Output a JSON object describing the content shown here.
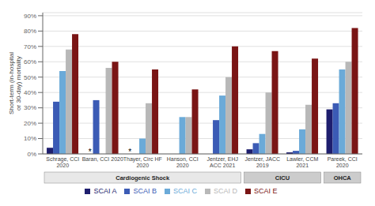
{
  "chart_data": {
    "type": "bar",
    "categories": [
      "Schrage, CCI\n2020",
      "Baran, CCI 2020",
      "Thayer, Circ HF\n2020",
      "Hanson, CCI\n2020",
      "Jentzer, EHJ\nACC 2021",
      "Jentzer, JACC\n2019",
      "Lawler, CCM\n2021",
      "Pareek, CCI\n2020"
    ],
    "series": [
      {
        "name": "SCAI A",
        "color": "#1e1e6e",
        "values": [
          4,
          null,
          null,
          null,
          null,
          3,
          1,
          29
        ]
      },
      {
        "name": "SCAI B",
        "color": "#3b5bb5",
        "values": [
          34,
          35,
          null,
          null,
          22,
          7,
          2,
          33
        ]
      },
      {
        "name": "SCAI C",
        "color": "#6baad8",
        "values": [
          54,
          null,
          10,
          24,
          38,
          13,
          16,
          55
        ]
      },
      {
        "name": "SCAI D",
        "color": "#b8b8b8",
        "values": [
          68,
          56,
          33,
          24,
          50,
          40,
          32,
          60
        ]
      },
      {
        "name": "SCAI E",
        "color": "#7a1515",
        "values": [
          78,
          60,
          55,
          42,
          70,
          67,
          62,
          82
        ]
      }
    ],
    "ylabel": "Short-term (in-hospital or 30-day) mortality",
    "ylim": [
      0,
      92
    ],
    "yticks": [
      {
        "value": 0,
        "label": "0%"
      },
      {
        "value": 10,
        "label": "10%"
      },
      {
        "value": 20,
        "label": "20%"
      },
      {
        "value": 30,
        "label": "30%"
      },
      {
        "value": 40,
        "label": "40%"
      },
      {
        "value": 50,
        "label": "50%"
      },
      {
        "value": 60,
        "label": "60%"
      },
      {
        "value": 70,
        "label": "70%"
      },
      {
        "value": 80,
        "label": "80%"
      },
      {
        "value": 90,
        "label": "90%"
      }
    ],
    "grid": true,
    "legend": "bottom",
    "annotations": [
      {
        "text": "*",
        "category": "Baran, CCI 2020",
        "series": "SCAI A"
      },
      {
        "text": "*",
        "category": "Thayer, Circ HF\n2020",
        "series": "SCAI A"
      },
      {
        "text": "Cardiogenic Shock",
        "categories": [
          "Schrage, CCI\n2020",
          "Baran, CCI 2020",
          "Thayer, Circ HF\n2020",
          "Hanson, CCI\n2020",
          "Jentzer, EHJ\nACC 2021"
        ],
        "color": "#e8e8e8"
      },
      {
        "text": "CICU",
        "categories": [
          "Jentzer, JACC\n2019",
          "Lawler, CCM\n2021"
        ],
        "color": "#cccccc"
      },
      {
        "text": "OHCA",
        "categories": [
          "Pareek, CCI\n2020"
        ],
        "color": "#cccccc"
      }
    ]
  }
}
